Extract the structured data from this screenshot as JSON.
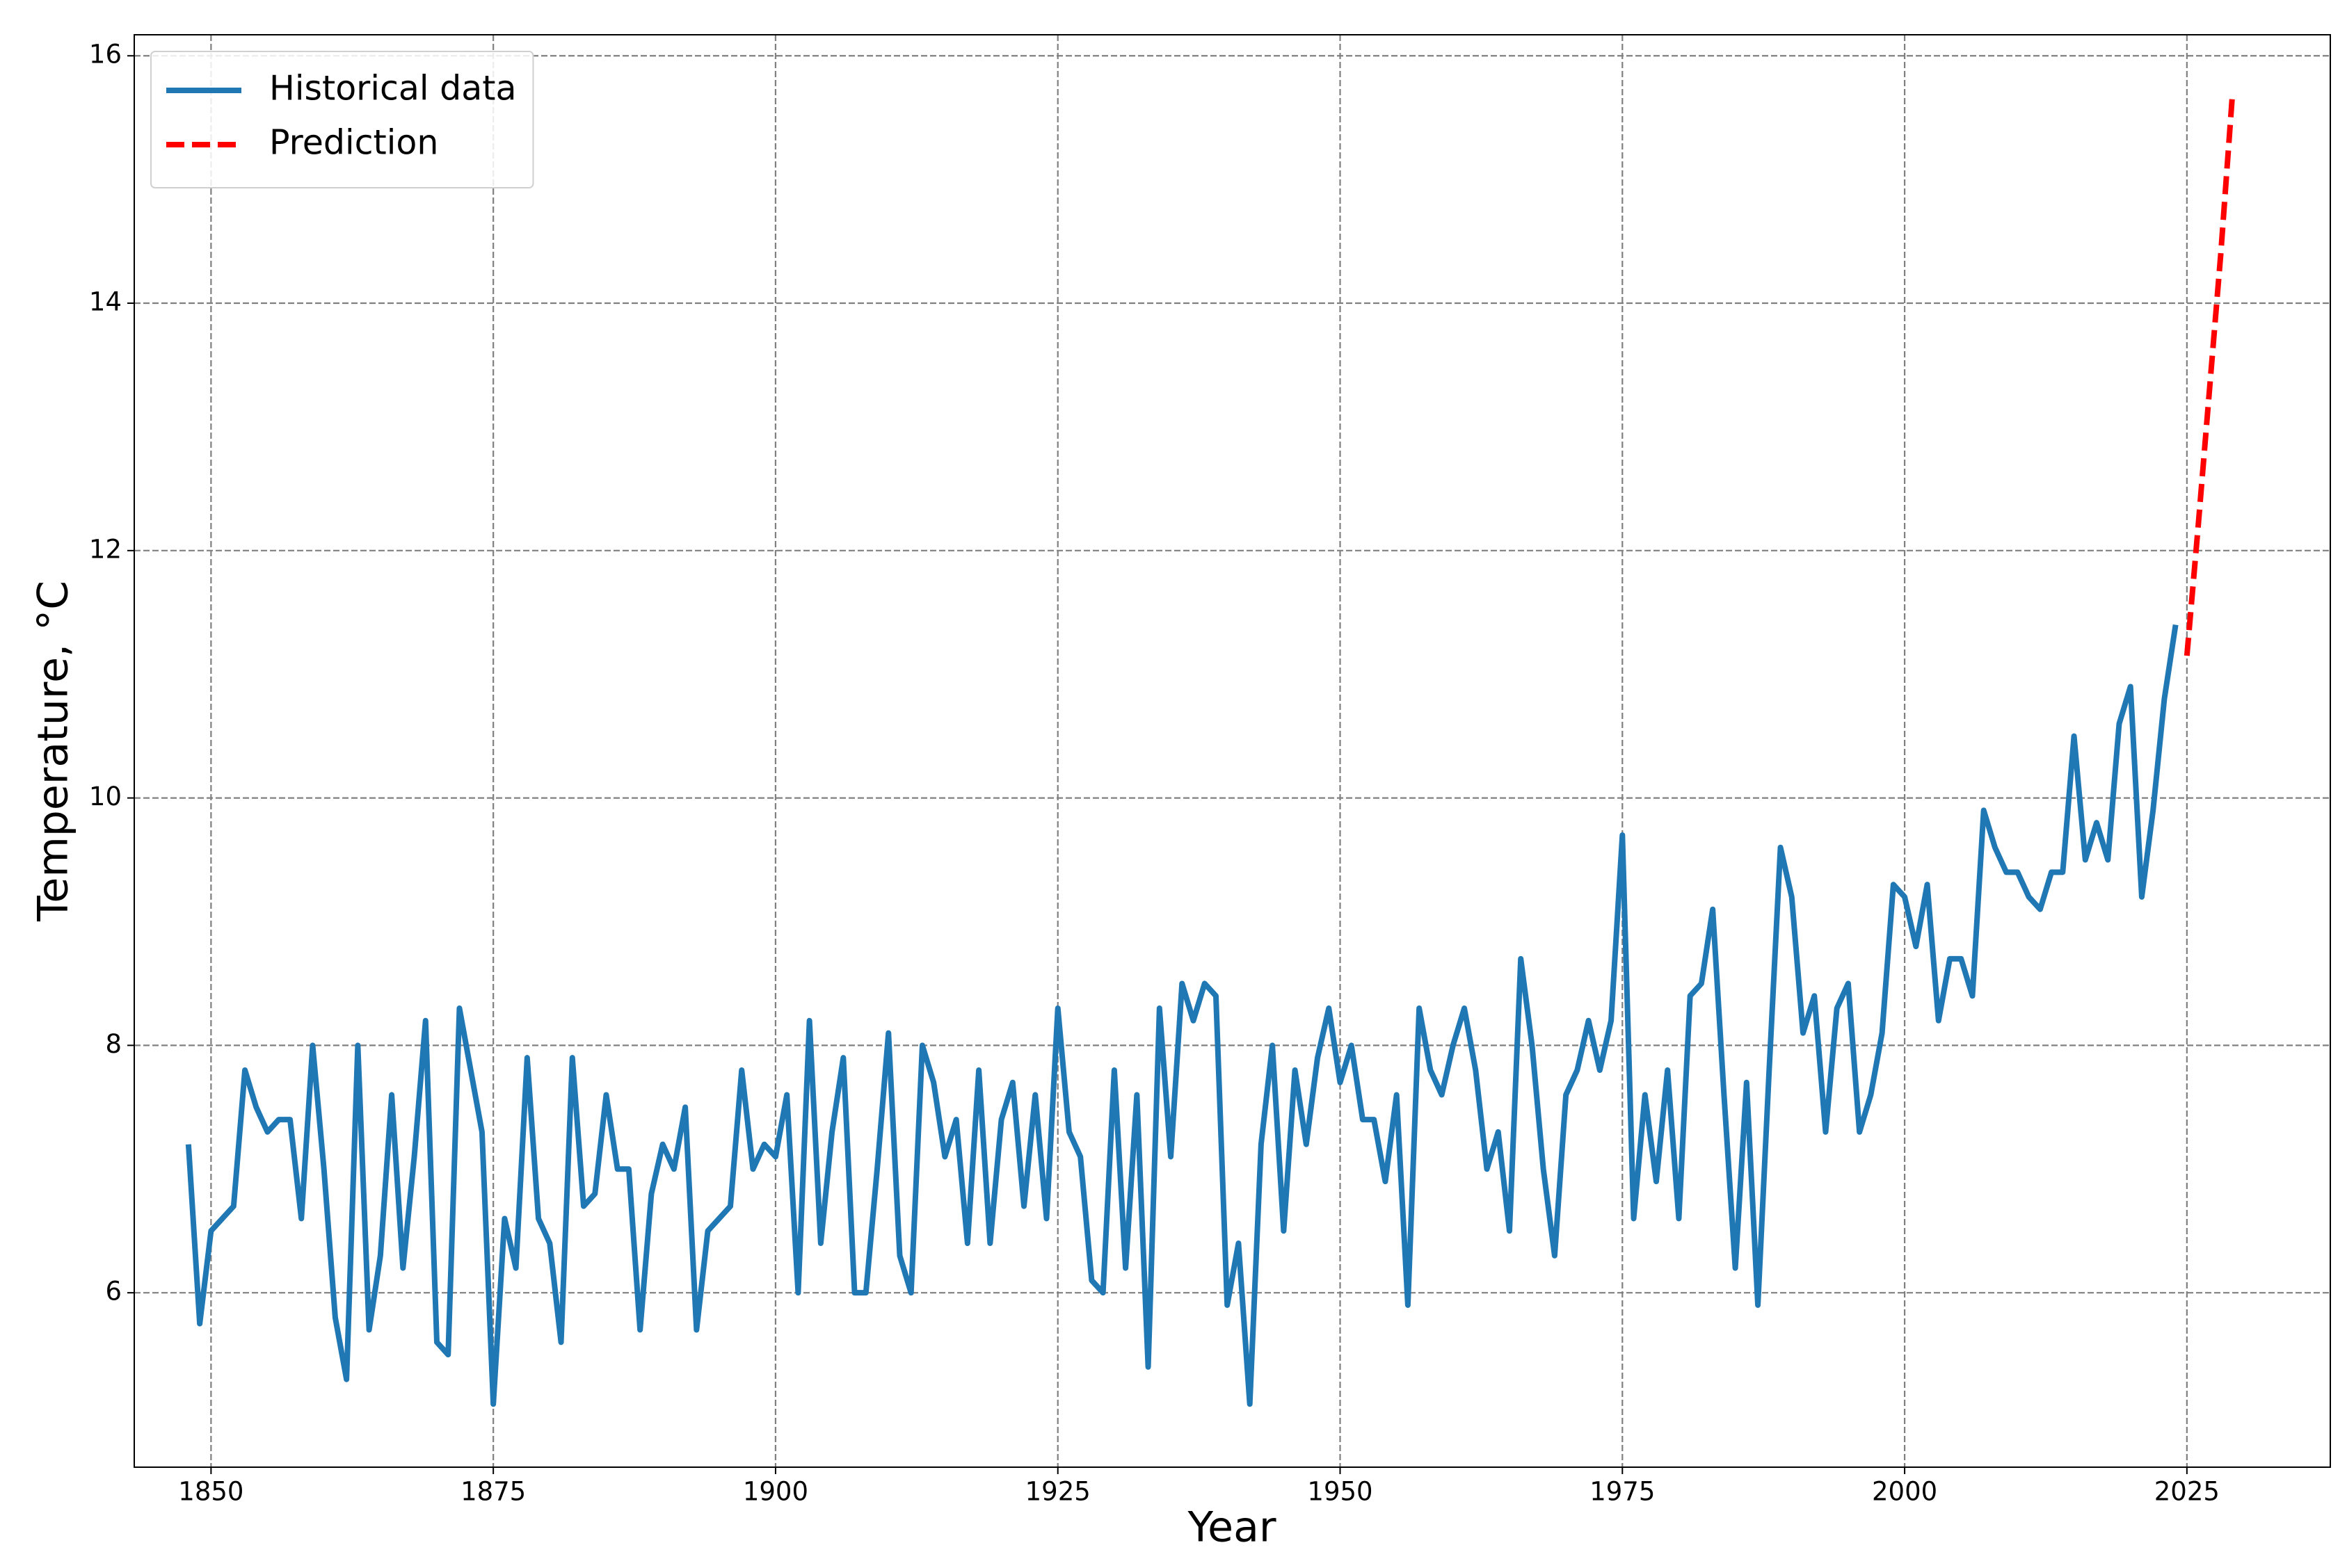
{
  "chart_data": {
    "type": "line",
    "xlabel": "Year",
    "ylabel": "Temperature, °C",
    "xlim": [
      1843.2,
      2037.7
    ],
    "ylim": [
      4.59,
      16.17
    ],
    "xticks": [
      1850,
      1875,
      1900,
      1925,
      1950,
      1975,
      2000,
      2025
    ],
    "yticks": [
      6,
      8,
      10,
      12,
      14,
      16
    ],
    "grid": true,
    "legend": "upper left",
    "series": [
      {
        "name": "Historical data",
        "color": "#1f77b4",
        "dash": "solid",
        "x": [
          1848,
          1849,
          1850,
          1851,
          1852,
          1853,
          1854,
          1855,
          1856,
          1857,
          1858,
          1859,
          1860,
          1861,
          1862,
          1863,
          1864,
          1865,
          1866,
          1867,
          1868,
          1869,
          1870,
          1871,
          1872,
          1873,
          1874,
          1875,
          1876,
          1877,
          1878,
          1879,
          1880,
          1881,
          1882,
          1883,
          1884,
          1885,
          1886,
          1887,
          1888,
          1889,
          1890,
          1891,
          1892,
          1893,
          1894,
          1895,
          1896,
          1897,
          1898,
          1899,
          1900,
          1901,
          1902,
          1903,
          1904,
          1905,
          1906,
          1907,
          1908,
          1909,
          1910,
          1911,
          1912,
          1913,
          1914,
          1915,
          1916,
          1917,
          1918,
          1919,
          1920,
          1921,
          1922,
          1923,
          1924,
          1925,
          1926,
          1927,
          1928,
          1929,
          1930,
          1931,
          1932,
          1933,
          1934,
          1935,
          1936,
          1937,
          1938,
          1939,
          1940,
          1941,
          1942,
          1943,
          1944,
          1945,
          1946,
          1947,
          1948,
          1949,
          1950,
          1951,
          1952,
          1953,
          1954,
          1955,
          1956,
          1957,
          1958,
          1959,
          1960,
          1961,
          1962,
          1963,
          1964,
          1965,
          1966,
          1967,
          1968,
          1969,
          1970,
          1971,
          1972,
          1973,
          1974,
          1975,
          1976,
          1977,
          1978,
          1979,
          1980,
          1981,
          1982,
          1983,
          1984,
          1985,
          1986,
          1987,
          1988,
          1989,
          1990,
          1991,
          1992,
          1993,
          1994,
          1995,
          1996,
          1997,
          1998,
          1999,
          2000,
          2001,
          2002,
          2003,
          2004,
          2005,
          2006,
          2007,
          2008,
          2009,
          2010,
          2011,
          2012,
          2013,
          2014,
          2015,
          2016,
          2017,
          2018,
          2019,
          2020,
          2021,
          2022,
          2023,
          2024
        ],
        "values": [
          7.2,
          5.75,
          6.5,
          6.6,
          6.7,
          7.8,
          7.5,
          7.3,
          7.4,
          7.4,
          6.6,
          8.0,
          7.0,
          5.8,
          5.3,
          8.0,
          5.7,
          6.3,
          7.6,
          6.2,
          7.1,
          8.2,
          5.6,
          5.5,
          8.3,
          7.8,
          7.3,
          5.1,
          6.6,
          6.2,
          7.9,
          6.6,
          6.4,
          5.6,
          7.9,
          6.7,
          6.8,
          7.6,
          7.0,
          7.0,
          5.7,
          6.8,
          7.2,
          7.0,
          7.5,
          5.7,
          6.5,
          6.6,
          6.7,
          7.8,
          7.0,
          7.2,
          7.1,
          7.6,
          6.0,
          8.2,
          6.4,
          7.3,
          7.9,
          6.0,
          6.0,
          7.0,
          8.1,
          6.3,
          6.0,
          8.0,
          7.7,
          7.1,
          7.4,
          6.4,
          7.8,
          6.4,
          7.4,
          7.7,
          6.7,
          7.6,
          6.6,
          8.3,
          7.3,
          7.1,
          6.1,
          6.0,
          7.8,
          6.2,
          7.6,
          5.4,
          8.3,
          7.1,
          8.5,
          8.2,
          8.5,
          8.4,
          5.9,
          6.4,
          5.1,
          7.2,
          8.0,
          6.5,
          7.8,
          7.2,
          7.9,
          8.3,
          7.7,
          8.0,
          7.4,
          7.4,
          6.9,
          7.6,
          5.9,
          8.3,
          7.8,
          7.6,
          8.0,
          8.3,
          7.8,
          7.0,
          7.3,
          6.5,
          8.7,
          8.0,
          7.0,
          6.3,
          7.6,
          7.8,
          8.2,
          7.8,
          8.2,
          9.7,
          6.6,
          7.6,
          6.9,
          7.8,
          6.6,
          8.4,
          8.5,
          9.1,
          7.6,
          6.2,
          7.7,
          5.9,
          7.8,
          9.6,
          9.2,
          8.1,
          8.4,
          7.3,
          8.3,
          8.5,
          7.3,
          7.6,
          8.1,
          9.3,
          9.2,
          8.8,
          9.3,
          8.2,
          8.7,
          8.7,
          8.4,
          9.9,
          9.6,
          9.4,
          9.4,
          9.2,
          9.1,
          9.4,
          9.4,
          10.5,
          9.5,
          9.8,
          9.5,
          10.6,
          10.9,
          9.2,
          9.9,
          10.8,
          11.4
        ]
      },
      {
        "name": "Prediction",
        "color": "#ff0000",
        "dash": "dashed",
        "x": [
          2025,
          2026,
          2027,
          2028,
          2029
        ],
        "values": [
          11.15,
          12.2,
          13.3,
          14.4,
          15.65
        ]
      }
    ]
  }
}
